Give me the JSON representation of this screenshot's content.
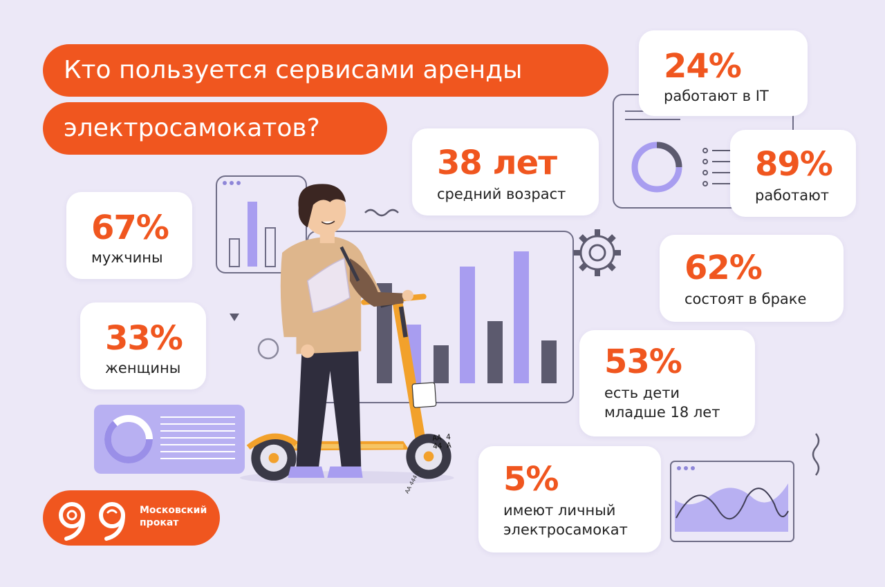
{
  "title": {
    "line1": "Кто пользуется сервисами аренды",
    "line2": "электросамокатов?"
  },
  "stats": {
    "it": {
      "value": "24%",
      "label": "работают в IT"
    },
    "age": {
      "value": "38 лет",
      "label": "средний возраст"
    },
    "employed": {
      "value": "89%",
      "label": "работают"
    },
    "men": {
      "value": "67%",
      "label": "мужчины"
    },
    "married": {
      "value": "62%",
      "label": "состоят в браке"
    },
    "women": {
      "value": "33%",
      "label": "женщины"
    },
    "children": {
      "value": "53%",
      "label_line1": "есть дети",
      "label_line2": "младше 18 лет"
    },
    "own_scooter": {
      "value": "5%",
      "label_line1": "имеют личный",
      "label_line2": "электросамокат"
    }
  },
  "logo": {
    "name_line1": "Московский",
    "name_line2": "прокат"
  },
  "license_plate": {
    "line1": "АА 4",
    "line2": "44 А",
    "side": "АА 444 А"
  },
  "colors": {
    "accent": "#f0561f",
    "background": "#ece8f7",
    "lavender": "#a89df0",
    "dark": "#5c5a6e"
  }
}
